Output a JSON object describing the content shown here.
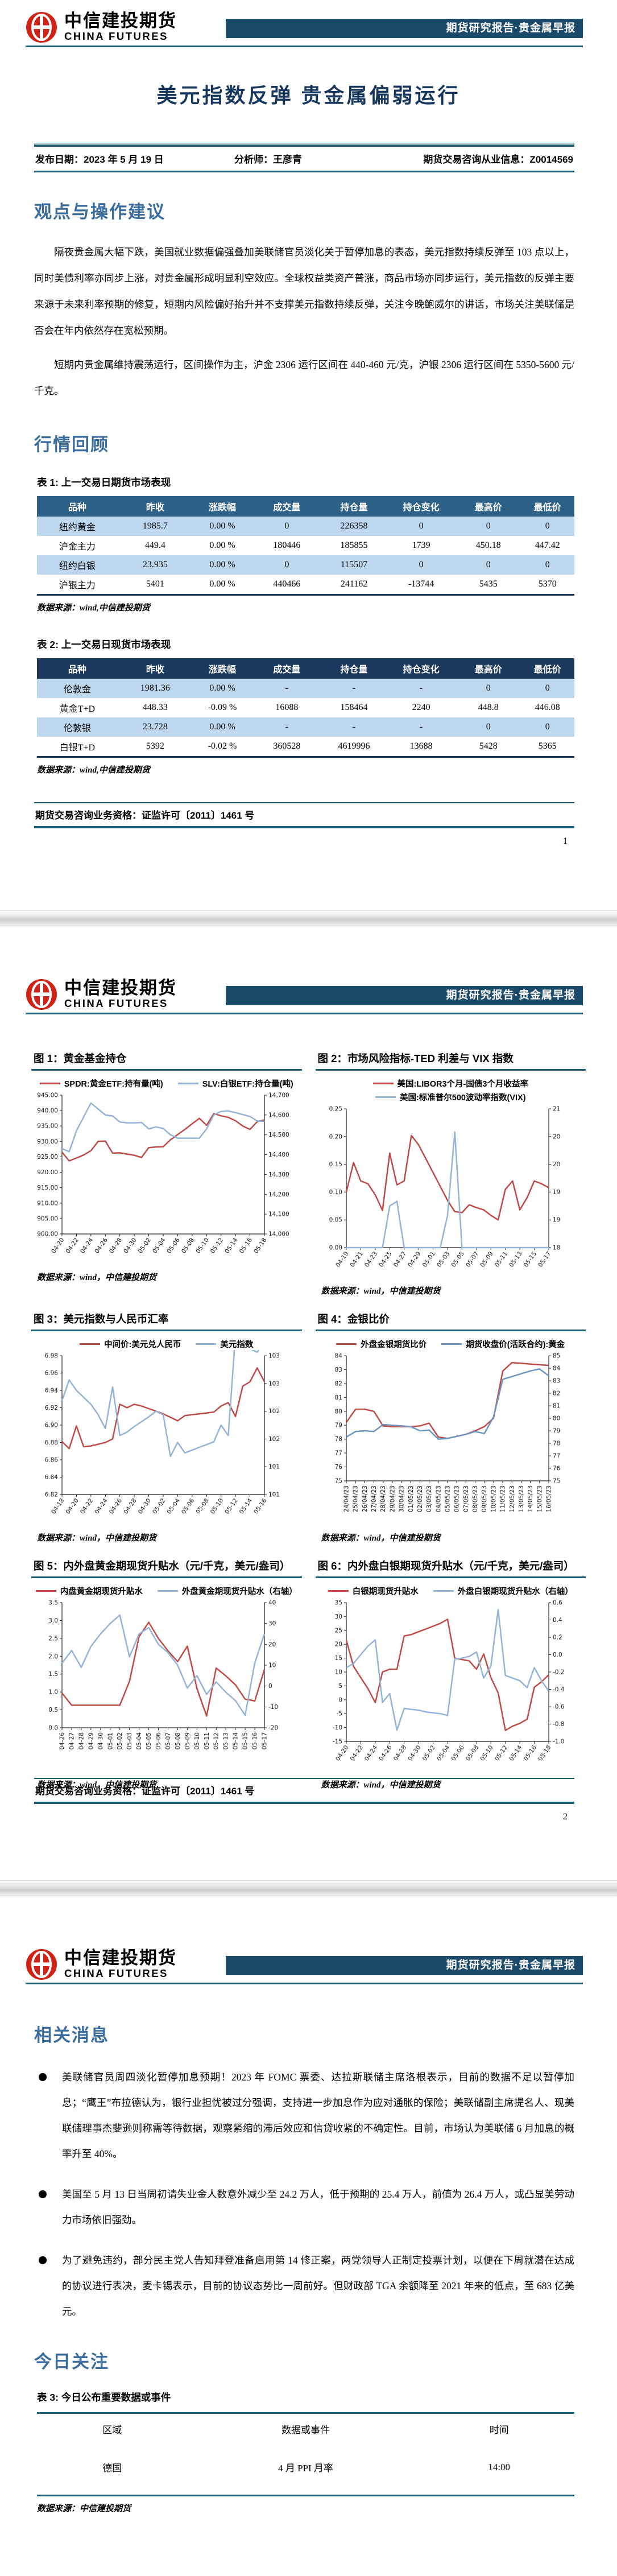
{
  "report": {
    "logo_cn": "中信建投期货",
    "logo_en": "CHINA FUTURES",
    "banner": "期货研究报告·贵金属早报",
    "title": "美元指数反弹 贵金属偏弱运行",
    "meta_date": "发布日期：2023 年 5 月 19 日",
    "meta_analyst": "分析师：王彦青",
    "meta_license": "期货交易咨询从业信息：Z0014569",
    "qualification": "期货交易咨询业务资格：证监许可〔2011〕1461 号",
    "page_numbers": {
      "p1": "1",
      "p2": "2"
    }
  },
  "sections": {
    "viewpoint_heading": "观点与操作建议",
    "viewpoint_paragraphs": [
      "隔夜贵金属大幅下跌，美国就业数据偏强叠加美联储官员淡化关于暂停加息的表态，美元指数持续反弹至 103 点以上，同时美债利率亦同步上涨，对贵金属形成明显利空效应。全球权益类资产普涨，商品市场亦同步运行，美元指数的反弹主要来源于未来利率预期的修复，短期内风险偏好抬升并不支撑美元指数持续反弹，关注今晚鲍威尔的讲话，市场关注美联储是否会在年内依然存在宽松预期。",
      "短期内贵金属维持震荡运行，区间操作为主，沪金 2306 运行区间在 440-460 元/克，沪银 2306 运行区间在 5350-5600 元/千克。"
    ],
    "review_heading": "行情回顾",
    "news_heading": "相关消息",
    "news_bullets": [
      "美联储官员周四淡化暂停加息预期！2023 年 FOMC 票委、达拉斯联储主席洛根表示，目前的数据不足以暂停加息；“鹰王”布拉德认为，银行业担忧被过分强调，支持进一步加息作为应对通胀的保险；美联储副主席提名人、现美联储理事杰斐逊则称需等待数据，观察紧缩的滞后效应和信贷收紧的不确定性。目前，市场认为美联储 6 月加息的概率升至 40%。",
      "美国至 5 月 13 日当周初请失业金人数意外减少至 24.2 万人，低于预期的 25.4 万人，前值为 26.4 万人，或凸显美劳动力市场依旧强劲。",
      "为了避免违约，部分民主党人告知拜登准备启用第 14 修正案，两党领导人正制定投票计划，以便在下周就潜在达成的协议进行表决，麦卡锡表示，目前的协议态势比一周前好。但财政部 TGA 余额降至 2021 年来的低点，至 683 亿美元。"
    ],
    "today_heading": "今日关注"
  },
  "tables": {
    "t1": {
      "caption": "表 1: 上一交易日期货市场表现",
      "headers": [
        "品种",
        "昨收",
        "涨跌幅",
        "成交量",
        "持仓量",
        "持仓变化",
        "最高价",
        "最低价"
      ],
      "rows": [
        [
          "纽约黄金",
          "1985.7",
          "0.00 %",
          "0",
          "226358",
          "0",
          "0",
          "0"
        ],
        [
          "沪金主力",
          "449.4",
          "0.00 %",
          "180446",
          "185855",
          "1739",
          "450.18",
          "447.42"
        ],
        [
          "纽约白银",
          "23.935",
          "0.00 %",
          "0",
          "115507",
          "0",
          "0",
          "0"
        ],
        [
          "沪银主力",
          "5401",
          "0.00 %",
          "440466",
          "241162",
          "-13744",
          "5435",
          "5370"
        ]
      ],
      "source": "数据来源：wind,中信建投期货"
    },
    "t2": {
      "caption": "表 2: 上一交易日现货市场表现",
      "headers": [
        "品种",
        "昨收",
        "涨跌幅",
        "成交量",
        "持仓量",
        "持仓变化",
        "最高价",
        "最低价"
      ],
      "rows": [
        [
          "伦敦金",
          "1981.36",
          "0.00 %",
          "-",
          "-",
          "-",
          "0",
          "0"
        ],
        [
          "黄金T+D",
          "448.33",
          "-0.09 %",
          "16088",
          "158464",
          "2240",
          "448.8",
          "446.08"
        ],
        [
          "伦敦银",
          "23.728",
          "0.00 %",
          "-",
          "-",
          "-",
          "0",
          "0"
        ],
        [
          "白银T+D",
          "5392",
          "-0.02 %",
          "360528",
          "4619996",
          "13688",
          "5428",
          "5365"
        ]
      ],
      "source": "数据来源：wind,中信建投期货"
    },
    "t3": {
      "caption": "表 3: 今日公布重要数据或事件",
      "headers": [
        "区域",
        "数据或事件",
        "时间"
      ],
      "rows": [
        [
          "德国",
          "4 月 PPI 月率",
          "14:00"
        ]
      ],
      "source": "数据来源：中信建投期货"
    }
  },
  "chart_data": [
    {
      "type": "line",
      "title": "图 1：黄金基金持仓",
      "source": "数据来源：wind，中信建投期货",
      "legend_position": "top",
      "x": [
        "04-20",
        "04-21",
        "04-22",
        "04-23",
        "04-24",
        "04-25",
        "04-26",
        "04-27",
        "04-28",
        "04-29",
        "04-30",
        "05-01",
        "05-02",
        "05-03",
        "05-04",
        "05-05",
        "05-06",
        "05-07",
        "05-08",
        "05-09",
        "05-10",
        "05-11",
        "05-12",
        "05-13",
        "05-14",
        "05-15",
        "05-16",
        "05-17",
        "05-18"
      ],
      "x_tick_every": 2,
      "x_rot": -55,
      "left": {
        "min": 900,
        "max": 945,
        "ticks": [
          "900.00",
          "905.00",
          "910.00",
          "915.00",
          "920.00",
          "925.00",
          "930.00",
          "935.00",
          "940.00",
          "945.00"
        ]
      },
      "right": {
        "min": 14000,
        "max": 14700,
        "ticks": [
          "14,000",
          "14,100",
          "14,200",
          "14,300",
          "14,400",
          "14,500",
          "14,600",
          "14,700"
        ]
      },
      "series": [
        {
          "name": "SPDR:黄金ETF:持有量(吨)",
          "axis": "left",
          "color": "#be4b48",
          "values": [
            926.5,
            923.7,
            924.6,
            925.6,
            927.0,
            930.0,
            930.1,
            926.2,
            926.3,
            925.9,
            925.5,
            924.8,
            928.0,
            928.2,
            928.3,
            930.5,
            932.2,
            933.9,
            935.7,
            937.5,
            935.2,
            939.0,
            938.3,
            937.8,
            936.7,
            935.0,
            933.9,
            936.4,
            937.0
          ]
        },
        {
          "name": "SLV:白银ETF:持仓量(吨)",
          "axis": "right",
          "color": "#95b3d7",
          "values": [
            14430,
            14415,
            14520,
            14590,
            14660,
            14630,
            14600,
            14595,
            14565,
            14560,
            14560,
            14562,
            14530,
            14540,
            14532,
            14500,
            14483,
            14483,
            14483,
            14483,
            14530,
            14600,
            14618,
            14620,
            14612,
            14602,
            14592,
            14570,
            14568
          ]
        }
      ]
    },
    {
      "type": "line",
      "title": "图 2：市场风险指标-TED 利差与 VIX 指数",
      "source": "数据来源：wind，中信建投期货",
      "legend_position": "top",
      "x": [
        "04-19",
        "04-20",
        "04-21",
        "04-22",
        "04-23",
        "04-24",
        "04-25",
        "04-26",
        "04-27",
        "04-28",
        "04-29",
        "04-30",
        "05-01",
        "05-02",
        "05-03",
        "05-04",
        "05-05",
        "05-06",
        "05-07",
        "05-08",
        "05-09",
        "05-10",
        "05-11",
        "05-12",
        "05-13",
        "05-14",
        "05-15",
        "05-16",
        "05-17"
      ],
      "x_tick_every": 2,
      "x_rot": -55,
      "left": {
        "min": 0,
        "max": 0.25,
        "ticks": [
          "0.00",
          "0.05",
          "0.10",
          "0.15",
          "0.20",
          "0.25"
        ]
      },
      "right": {
        "min": 18,
        "max": 21,
        "ticks": [
          "18",
          "19",
          "19",
          "20",
          "20",
          "21"
        ]
      },
      "series": [
        {
          "name": "美国:LIBOR3个月-国债3个月收益率",
          "axis": "left",
          "color": "#be4b48",
          "values": [
            0.1,
            0.153,
            0.12,
            0.115,
            0.095,
            0.067,
            0.17,
            0.113,
            0.12,
            0.202,
            0.185,
            0.16,
            0.135,
            0.11,
            0.085,
            0.065,
            0.063,
            0.077,
            0.072,
            0.068,
            0.058,
            0.05,
            0.105,
            0.12,
            0.068,
            0.09,
            0.12,
            0.115,
            0.108
          ]
        },
        {
          "name": "美国:标准普尔500波动率指数(VIX)",
          "axis": "right",
          "color": "#95b3d7",
          "values": [
            18,
            18,
            18,
            18,
            18,
            18,
            18.9,
            19.0,
            18,
            18,
            18,
            18,
            18,
            18,
            18.7,
            20.5,
            18,
            18,
            18,
            18,
            18,
            18,
            18,
            18,
            18,
            18,
            18,
            18,
            18
          ]
        }
      ]
    },
    {
      "type": "line",
      "title": "图 3：美元指数与人民币汇率",
      "source": "数据来源：wind，中信建投期货",
      "legend_position": "top",
      "x": [
        "04-18",
        "04-19",
        "04-20",
        "04-21",
        "04-22",
        "04-23",
        "04-24",
        "04-25",
        "04-26",
        "04-27",
        "04-28",
        "04-29",
        "04-30",
        "05-01",
        "05-02",
        "05-03",
        "05-04",
        "05-05",
        "05-06",
        "05-07",
        "05-08",
        "05-09",
        "05-10",
        "05-11",
        "05-12",
        "05-13",
        "05-14",
        "05-15",
        "05-16"
      ],
      "x_tick_every": 2,
      "x_rot": -55,
      "left": {
        "min": 6.82,
        "max": 6.98,
        "ticks": [
          "6.82",
          "6.84",
          "6.86",
          "6.88",
          "6.90",
          "6.92",
          "6.94",
          "6.96",
          "6.98"
        ]
      },
      "right": {
        "min": 101,
        "max": 103,
        "ticks": [
          "101",
          "101",
          "102",
          "102",
          "103",
          "103"
        ]
      },
      "series": [
        {
          "name": "中间价:美元兑人民币",
          "axis": "left",
          "color": "#be4b48",
          "values": [
            6.881,
            6.873,
            6.899,
            6.875,
            6.876,
            6.878,
            6.88,
            6.884,
            6.924,
            6.92,
            6.924,
            6.922,
            6.919,
            6.916,
            6.913,
            6.909,
            6.905,
            6.911,
            6.912,
            6.913,
            6.914,
            6.915,
            6.922,
            6.926,
            6.91,
            6.945,
            6.95,
            6.966,
            6.95
          ]
        },
        {
          "name": "美元指数",
          "axis": "right",
          "color": "#95b3d7",
          "values": [
            102.35,
            102.65,
            102.5,
            102.4,
            102.3,
            102.15,
            101.95,
            102.55,
            101.85,
            101.9,
            101.98,
            102.05,
            102.12,
            102.2,
            102.15,
            101.55,
            101.75,
            101.6,
            101.64,
            101.68,
            101.72,
            101.76,
            102.0,
            101.85,
            103.3,
            103.2,
            103.1,
            103.05,
            103.2
          ]
        }
      ]
    },
    {
      "type": "line",
      "title": "图 4：金银比价",
      "source": "数据来源：wind，中信建投期货",
      "legend_position": "top",
      "x": [
        "24/04/23",
        "25/04/23",
        "26/04/23",
        "27/04/23",
        "28/04/23",
        "29/04/23",
        "30/04/23",
        "01/05/23",
        "02/05/23",
        "03/05/23",
        "04/05/23",
        "05/05/23",
        "06/05/23",
        "07/05/23",
        "08/05/23",
        "09/05/23",
        "10/05/23",
        "11/05/23",
        "12/05/23",
        "13/05/23",
        "14/05/23",
        "15/05/23",
        "16/05/23"
      ],
      "x_tick_every": 1,
      "x_rot": -90,
      "left": {
        "min": 75,
        "max": 84,
        "ticks": [
          "75",
          "76",
          "77",
          "78",
          "79",
          "80",
          "81",
          "82",
          "83",
          "84"
        ]
      },
      "right": {
        "min": 75,
        "max": 85,
        "ticks": [
          "75",
          "76",
          "77",
          "78",
          "79",
          "80",
          "81",
          "82",
          "83",
          "84",
          "85"
        ]
      },
      "series": [
        {
          "name": "外盘金银期货比价",
          "axis": "left",
          "color": "#be4b48",
          "values": [
            79.2,
            80.15,
            80.15,
            80.0,
            78.95,
            78.9,
            78.9,
            78.9,
            78.95,
            79.15,
            78.15,
            78.05,
            78.2,
            78.35,
            78.6,
            78.9,
            79.5,
            82.9,
            83.5,
            83.45,
            83.4,
            83.35,
            83.3
          ]
        },
        {
          "name": "期货收盘价(活跃合约):黄金",
          "axis": "right",
          "color": "#6d94bf",
          "values": [
            78.5,
            78.94,
            79.0,
            78.94,
            79.5,
            79.44,
            79.39,
            79.33,
            79.0,
            79.06,
            78.33,
            78.39,
            78.56,
            78.72,
            78.94,
            78.78,
            80.11,
            83.11,
            83.33,
            83.56,
            83.78,
            83.94,
            83.39
          ]
        }
      ]
    },
    {
      "type": "line",
      "title": "图 5：内外盘黄金期现货升贴水（元/千克，美元/盎司）",
      "source": "数据来源：wind，中信建投期货",
      "legend_position": "top",
      "x": [
        "04-26",
        "04-27",
        "04-28",
        "04-29",
        "04-30",
        "05-01",
        "05-02",
        "05-03",
        "05-04",
        "05-05",
        "05-06",
        "05-07",
        "05-08",
        "05-09",
        "05-10",
        "05-11",
        "05-12",
        "05-13",
        "05-14",
        "05-15",
        "05-16",
        "05-17"
      ],
      "x_tick_every": 1,
      "x_rot": -90,
      "left": {
        "min": 0,
        "max": 3.5,
        "ticks": [
          "0.0",
          "0.5",
          "1.0",
          "1.5",
          "2.0",
          "2.5",
          "3.0",
          "3.5"
        ]
      },
      "right": {
        "min": -20,
        "max": 40,
        "ticks": [
          "-20",
          "-10",
          "0",
          "10",
          "20",
          "30",
          "40"
        ]
      },
      "series": [
        {
          "name": "内盘黄金期现货升贴水",
          "axis": "left",
          "color": "#be4b48",
          "values": [
            0.97,
            0.63,
            0.63,
            0.63,
            0.63,
            0.63,
            0.63,
            1.3,
            2.55,
            2.95,
            2.5,
            2.15,
            1.85,
            2.28,
            1.1,
            0.33,
            1.67,
            1.45,
            1.2,
            0.8,
            0.75,
            1.63
          ]
        },
        {
          "name": "外盘黄金期现货升贴水（右轴）",
          "axis": "right",
          "color": "#95b3d7",
          "values": [
            11,
            17,
            9,
            19,
            25,
            30,
            34,
            14,
            25,
            28,
            20,
            16,
            10,
            -1,
            5,
            -4,
            2,
            -3,
            -7,
            -14,
            11,
            25
          ]
        }
      ]
    },
    {
      "type": "line",
      "title": "图 6：内外盘白银期现货升贴水（元/千克，美元/盎司）",
      "source": "数据来源：wind，中信建投期货",
      "legend_position": "top",
      "x": [
        "04-20",
        "04-21",
        "04-22",
        "04-23",
        "04-24",
        "04-25",
        "04-26",
        "04-27",
        "04-28",
        "04-29",
        "04-30",
        "05-01",
        "05-02",
        "05-03",
        "05-04",
        "05-05",
        "05-06",
        "05-07",
        "05-08",
        "05-09",
        "05-10",
        "05-11",
        "05-12",
        "05-13",
        "05-14",
        "05-15",
        "05-16",
        "05-17",
        "05-18"
      ],
      "x_tick_every": 2,
      "x_rot": -55,
      "left": {
        "min": -15,
        "max": 35,
        "ticks": [
          "-15",
          "-10",
          "-5",
          "0",
          "5",
          "10",
          "15",
          "20",
          "25",
          "30",
          "35"
        ]
      },
      "right": {
        "min": -1.0,
        "max": 0.6,
        "ticks": [
          "-1.0",
          "-0.8",
          "-0.6",
          "-0.4",
          "-0.2",
          "0.0",
          "0.2",
          "0.4",
          "0.6"
        ]
      },
      "series": [
        {
          "name": "白银期现货升贴水",
          "axis": "left",
          "color": "#be4b48",
          "values": [
            21.5,
            12,
            8,
            4,
            -1,
            10,
            11,
            11,
            23,
            23.5,
            24.5,
            25.5,
            26.5,
            27.5,
            29,
            15,
            14.5,
            14,
            11,
            16.5,
            8,
            2.5,
            -11,
            -9.5,
            -8.5,
            -7,
            4.5,
            6.5,
            9
          ]
        },
        {
          "name": "外盘白银期现货升贴水（右轴）",
          "axis": "right",
          "color": "#95b3d7",
          "values": [
            -0.15,
            -0.1,
            0.0,
            0.1,
            0.17,
            -0.55,
            -0.45,
            -0.87,
            -0.62,
            -0.63,
            -0.64,
            -0.66,
            -0.67,
            -0.68,
            -0.7,
            -0.05,
            -0.04,
            -0.02,
            0.03,
            -0.27,
            -0.13,
            0.52,
            -0.24,
            -0.27,
            -0.3,
            -0.38,
            -0.15,
            -0.3,
            -0.42
          ]
        }
      ]
    }
  ]
}
